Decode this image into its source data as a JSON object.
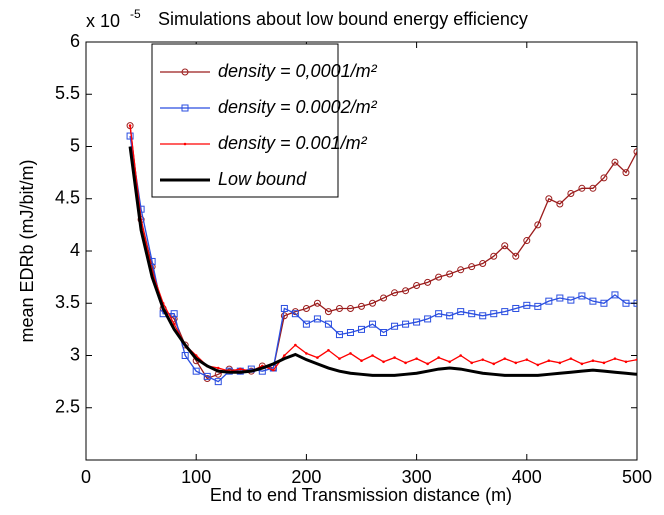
{
  "chart_data": {
    "type": "line",
    "title": "Simulations about low bound energy efficiency",
    "y_multiplier": "x 10",
    "y_multiplier_exp": "-5",
    "xlabel": "End to end Transmission distance (m)",
    "ylabel": "mean EDRb (mJ/bit/m)",
    "x": [
      40,
      50,
      60,
      70,
      80,
      90,
      100,
      110,
      120,
      130,
      140,
      150,
      160,
      170,
      180,
      190,
      200,
      210,
      220,
      230,
      240,
      250,
      260,
      270,
      280,
      290,
      300,
      310,
      320,
      330,
      340,
      350,
      360,
      370,
      380,
      390,
      400,
      410,
      420,
      430,
      440,
      450,
      460,
      470,
      480,
      490,
      500
    ],
    "series": [
      {
        "name": "density = 0,0001/m²",
        "color": "#9b1c1c",
        "marker": "o",
        "values": [
          5.2,
          4.3,
          3.85,
          3.45,
          3.35,
          3.1,
          2.95,
          2.78,
          2.82,
          2.87,
          2.85,
          2.85,
          2.9,
          2.88,
          3.38,
          3.42,
          3.45,
          3.5,
          3.42,
          3.45,
          3.45,
          3.47,
          3.5,
          3.55,
          3.6,
          3.62,
          3.67,
          3.7,
          3.75,
          3.78,
          3.82,
          3.85,
          3.88,
          3.95,
          4.05,
          3.95,
          4.1,
          4.25,
          4.5,
          4.45,
          4.55,
          4.6,
          4.6,
          4.7,
          4.85,
          4.75,
          4.95
        ]
      },
      {
        "name": "density = 0.0002/m²",
        "color": "#2a4ee0",
        "marker": "s",
        "values": [
          5.1,
          4.4,
          3.9,
          3.4,
          3.4,
          3.0,
          2.85,
          2.8,
          2.75,
          2.85,
          2.85,
          2.87,
          2.85,
          2.88,
          3.45,
          3.4,
          3.3,
          3.35,
          3.3,
          3.2,
          3.22,
          3.25,
          3.3,
          3.22,
          3.28,
          3.3,
          3.32,
          3.35,
          3.4,
          3.38,
          3.42,
          3.4,
          3.38,
          3.4,
          3.42,
          3.45,
          3.48,
          3.47,
          3.52,
          3.55,
          3.53,
          3.57,
          3.52,
          3.5,
          3.58,
          3.5,
          3.5
        ]
      },
      {
        "name": "density = 0.001/m²",
        "color": "#ff0000",
        "marker": ".",
        "values": [
          5.2,
          4.3,
          3.8,
          3.5,
          3.3,
          3.1,
          3.0,
          2.9,
          2.88,
          2.85,
          2.87,
          2.85,
          2.9,
          2.86,
          3.0,
          3.1,
          3.02,
          2.98,
          3.05,
          2.97,
          3.02,
          2.95,
          3.0,
          2.94,
          2.98,
          2.93,
          2.97,
          2.92,
          2.98,
          2.94,
          3.0,
          2.93,
          2.96,
          2.92,
          2.97,
          2.93,
          2.96,
          2.91,
          2.95,
          2.93,
          2.97,
          2.92,
          2.95,
          2.93,
          2.97,
          2.94,
          2.96
        ]
      },
      {
        "name": "Low bound",
        "color": "#000000",
        "marker": "none",
        "values": [
          5.0,
          4.2,
          3.75,
          3.45,
          3.25,
          3.1,
          2.97,
          2.9,
          2.85,
          2.84,
          2.84,
          2.85,
          2.88,
          2.92,
          2.97,
          3.01,
          2.96,
          2.92,
          2.88,
          2.85,
          2.83,
          2.82,
          2.81,
          2.81,
          2.81,
          2.82,
          2.83,
          2.85,
          2.87,
          2.88,
          2.87,
          2.85,
          2.83,
          2.82,
          2.81,
          2.81,
          2.81,
          2.81,
          2.82,
          2.83,
          2.84,
          2.85,
          2.86,
          2.85,
          2.84,
          2.83,
          2.82
        ]
      }
    ],
    "xlim": [
      0,
      500
    ],
    "xticks": [
      0,
      100,
      200,
      300,
      400,
      500
    ],
    "ylim": [
      2,
      6
    ],
    "yticks": [
      2.5,
      3,
      3.5,
      4,
      4.5,
      5,
      5.5,
      6
    ],
    "legend": "upper left",
    "grid": false
  }
}
